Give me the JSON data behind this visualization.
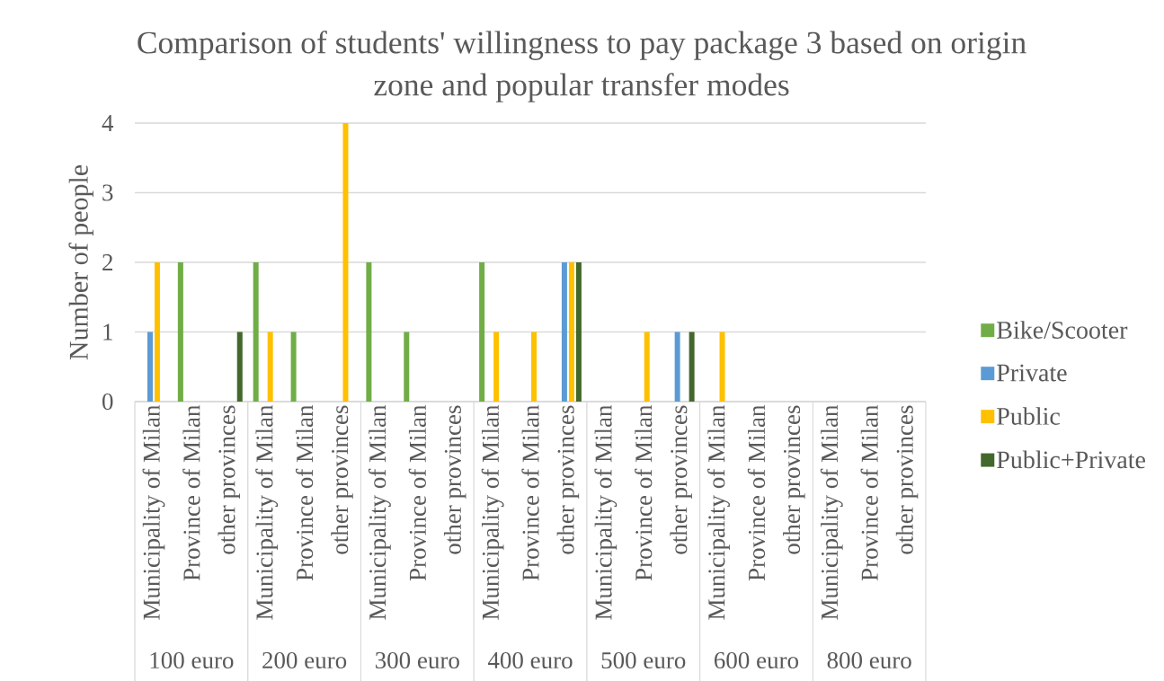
{
  "chart_data": {
    "type": "bar",
    "title": "Comparison of students' willingness to pay package 3 based on origin zone and popular transfer modes",
    "ylabel": "Number of people",
    "categories": [
      "Municipality of Milan",
      "Province of Milan",
      "other provinces",
      "Municipality of Milan",
      "Province of Milan",
      "other provinces",
      "Municipality of Milan",
      "Province of Milan",
      "other provinces",
      "Municipality of Milan",
      "Province of Milan",
      "other provinces",
      "Municipality of Milan",
      "Province of Milan",
      "other provinces",
      "Municipality of Milan",
      "Province of Milan",
      "other provinces",
      "Municipality of Milan",
      "Province of Milan",
      "other provinces"
    ],
    "annotations": [
      "100 euro",
      "200 euro",
      "300 euro",
      "400 euro",
      "500 euro",
      "600 euro",
      "800 euro"
    ],
    "series": [
      {
        "name": "Bike/Scooter",
        "color": "#70ad47",
        "values": [
          null,
          2,
          null,
          2,
          1,
          null,
          2,
          1,
          null,
          2,
          null,
          null,
          null,
          null,
          null,
          null,
          null,
          null,
          null,
          null,
          null
        ]
      },
      {
        "name": "Private",
        "color": "#5b9bd5",
        "values": [
          1,
          null,
          null,
          null,
          null,
          null,
          null,
          null,
          null,
          null,
          null,
          2,
          null,
          null,
          1,
          null,
          null,
          null,
          null,
          null,
          null
        ]
      },
      {
        "name": "Public",
        "color": "#ffc000",
        "values": [
          2,
          null,
          null,
          1,
          null,
          4,
          null,
          null,
          null,
          1,
          1,
          2,
          null,
          1,
          null,
          1,
          null,
          null,
          null,
          null,
          null
        ]
      },
      {
        "name": "Public+Private",
        "color": "#43682b",
        "values": [
          null,
          null,
          1,
          null,
          null,
          null,
          null,
          null,
          null,
          null,
          null,
          2,
          null,
          null,
          1,
          null,
          null,
          null,
          null,
          null,
          null
        ]
      }
    ],
    "ylim": [
      0,
      4
    ],
    "yticks": [
      0,
      1,
      2,
      3,
      4
    ],
    "grid": "y",
    "legend": "right"
  }
}
